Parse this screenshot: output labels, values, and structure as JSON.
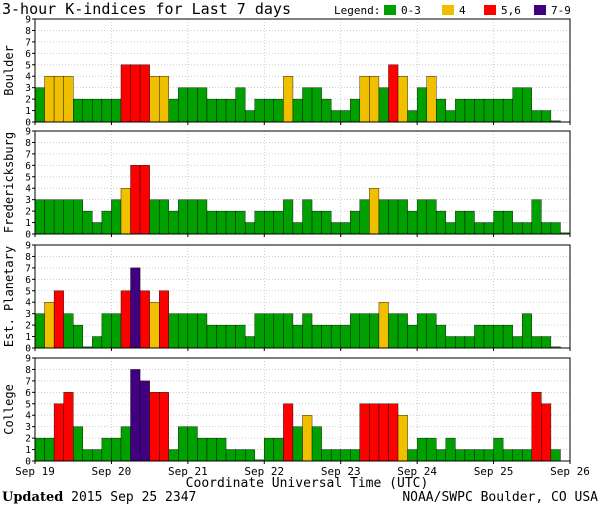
{
  "chart_data": {
    "type": "bar",
    "title": "3-hour K-indices for Last 7 days",
    "legend": {
      "label": "Legend:",
      "entries": [
        {
          "label": "0-3",
          "color": "#00a000"
        },
        {
          "label": "4",
          "color": "#f0c000"
        },
        {
          "label": "5,6",
          "color": "#ff0000"
        },
        {
          "label": "7-9",
          "color": "#400080"
        }
      ]
    },
    "xlabel": "Coordinate Universal Time (UTC)",
    "x_ticks": [
      "Sep 19",
      "Sep 20",
      "Sep 21",
      "Sep 22",
      "Sep 23",
      "Sep 24",
      "Sep 25",
      "Sep 26"
    ],
    "ylim": [
      0,
      9
    ],
    "y_ticks": [
      "0",
      "1",
      "2",
      "3",
      "4",
      "5",
      "6",
      "7",
      "8",
      "9"
    ],
    "bars_per_day": 8,
    "series": [
      {
        "name": "Boulder",
        "values": [
          3,
          4,
          4,
          4,
          2,
          2,
          2,
          2,
          2,
          5,
          5,
          5,
          4,
          4,
          2,
          3,
          3,
          3,
          2,
          2,
          2,
          3,
          1,
          2,
          2,
          2,
          4,
          2,
          3,
          3,
          2,
          1,
          1,
          2,
          4,
          4,
          3,
          5,
          4,
          1,
          3,
          4,
          2,
          1,
          2,
          2,
          2,
          2,
          2,
          2,
          3,
          3,
          1,
          1,
          0.1
        ]
      },
      {
        "name": "Fredericksburg",
        "values": [
          3,
          3,
          3,
          3,
          3,
          2,
          1,
          2,
          3,
          4,
          6,
          6,
          3,
          3,
          2,
          3,
          3,
          3,
          2,
          2,
          2,
          2,
          1,
          2,
          2,
          2,
          3,
          1,
          3,
          2,
          2,
          1,
          1,
          2,
          3,
          4,
          3,
          3,
          3,
          2,
          3,
          3,
          2,
          1,
          2,
          2,
          1,
          1,
          2,
          2,
          1,
          1,
          3,
          1,
          1,
          0.1
        ]
      },
      {
        "name": "Est. Planetary",
        "values": [
          3,
          4,
          5,
          3,
          2,
          0.1,
          1,
          3,
          3,
          5,
          7,
          5,
          4,
          5,
          3,
          3,
          3,
          3,
          2,
          2,
          2,
          2,
          1,
          3,
          3,
          3,
          3,
          2,
          3,
          2,
          2,
          2,
          2,
          3,
          3,
          3,
          4,
          3,
          3,
          2,
          3,
          3,
          2,
          1,
          1,
          1,
          2,
          2,
          2,
          2,
          1,
          3,
          1,
          1,
          0.1
        ]
      },
      {
        "name": "College",
        "values": [
          2,
          2,
          5,
          6,
          3,
          1,
          1,
          2,
          2,
          3,
          8,
          7,
          6,
          6,
          1,
          3,
          3,
          2,
          2,
          2,
          1,
          1,
          1,
          0.1,
          2,
          2,
          5,
          3,
          4,
          3,
          1,
          1,
          1,
          1,
          5,
          5,
          5,
          5,
          4,
          1,
          2,
          2,
          1,
          2,
          1,
          1,
          1,
          1,
          2,
          1,
          1,
          1,
          6,
          5,
          1
        ]
      }
    ]
  },
  "footer": {
    "updated_label": "Updated",
    "updated_value": " 2015 Sep 25 2347",
    "source": "NOAA/SWPC Boulder, CO USA"
  }
}
